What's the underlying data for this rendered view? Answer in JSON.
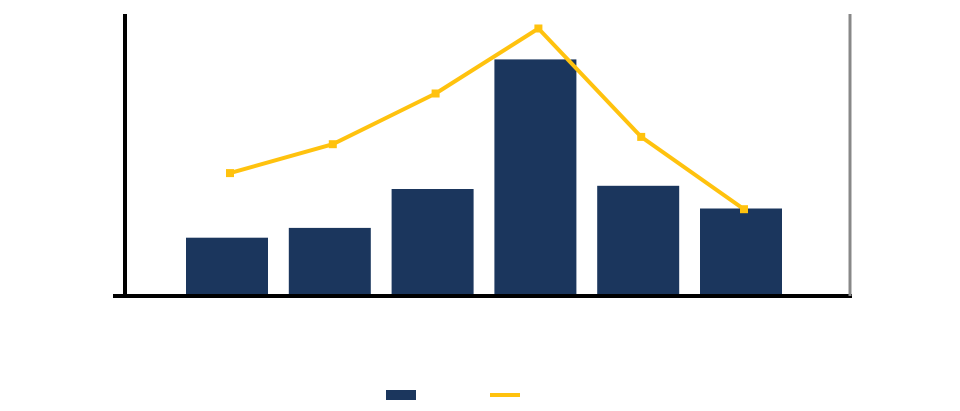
{
  "chart_data": {
    "type": "bar",
    "categories": [
      "",
      "",
      "",
      "",
      "",
      ""
    ],
    "series": [
      {
        "kind": "bar",
        "axis": "left",
        "values": [
          900,
          1050,
          1650,
          3650,
          1700,
          1350
        ]
      },
      {
        "kind": "line",
        "axis": "right",
        "values": [
          4.6,
          5.0,
          5.7,
          6.6,
          5.1,
          4.1
        ]
      }
    ],
    "y_left": {
      "ticks": [
        "",
        "",
        "",
        "",
        ""
      ],
      "range": [
        0,
        4350
      ]
    },
    "y_right": {
      "ticks": [
        "",
        "",
        "",
        "",
        "",
        ""
      ],
      "range": [
        2.9,
        6.8
      ]
    },
    "ylabel_left": "",
    "ylabel_right": "",
    "legend": {
      "placement": "bottom",
      "entries": [
        "",
        ""
      ]
    },
    "grid": false,
    "colors": {
      "bar": "#1b365d",
      "line": "#ffc20e",
      "axis_left": "#000000",
      "axis_right": "#888888"
    }
  }
}
